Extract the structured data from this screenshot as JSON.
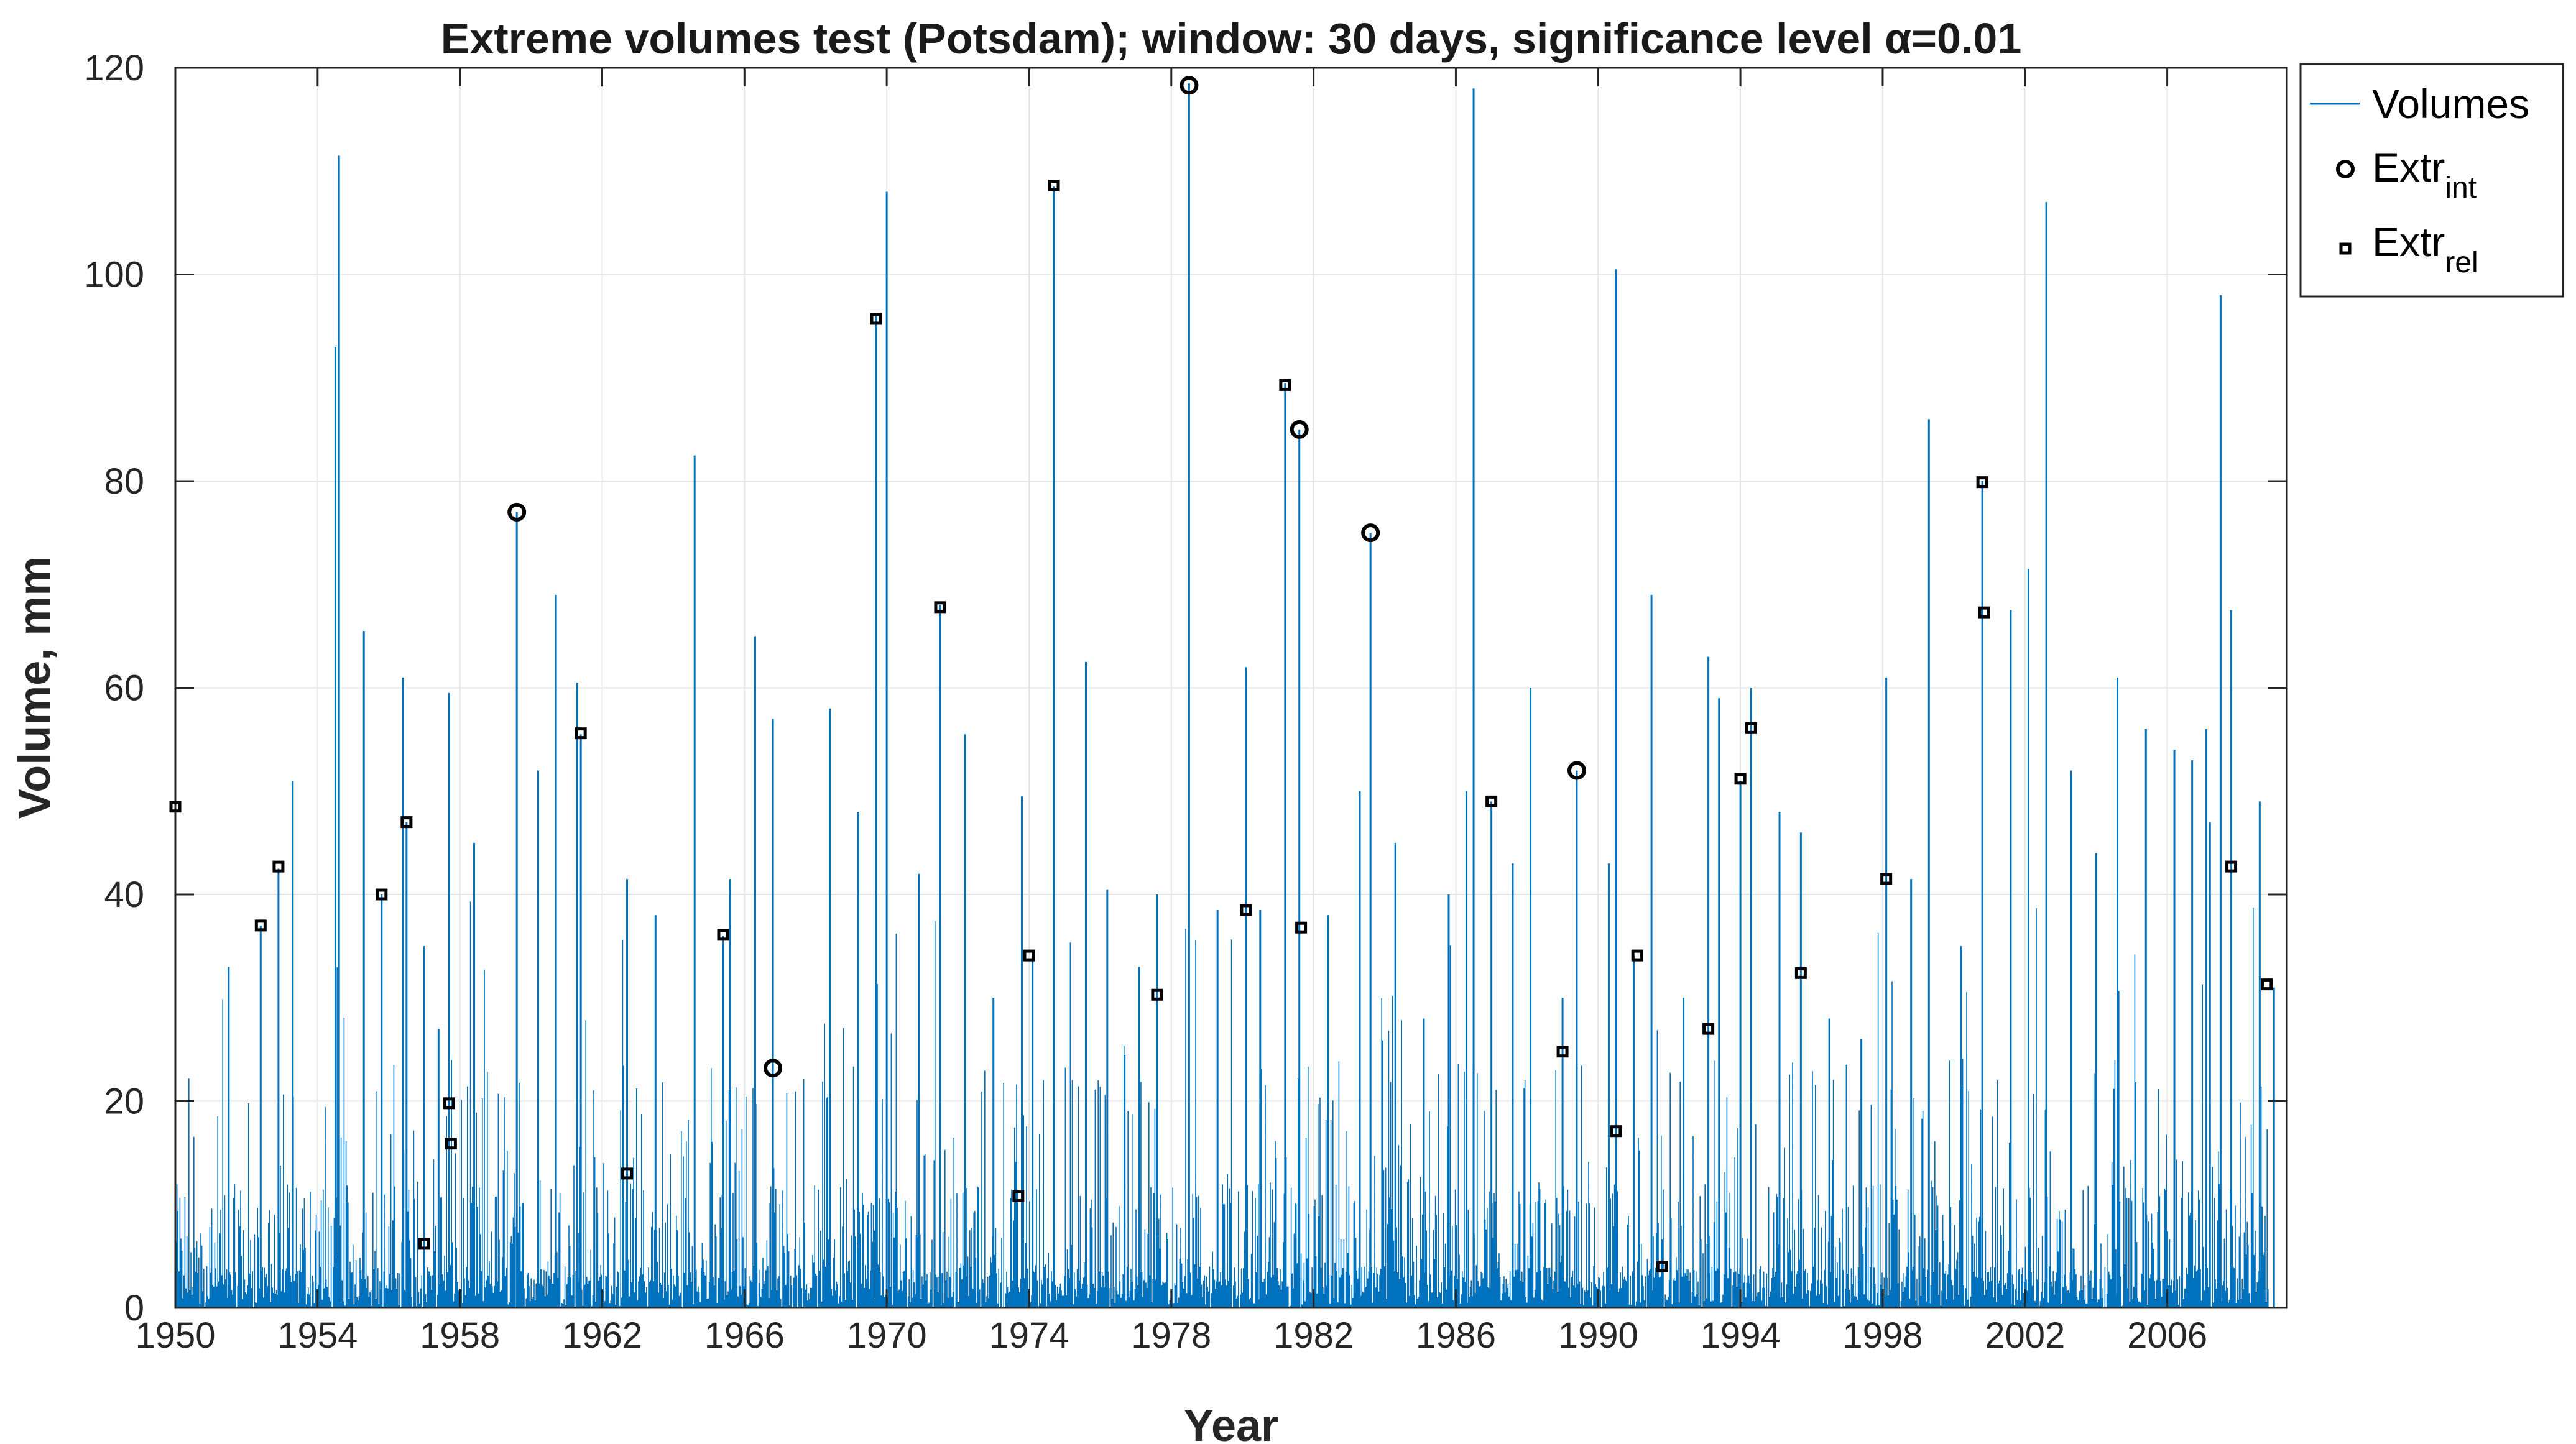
{
  "chart_data": {
    "type": "bar",
    "title": "Extreme volumes test (Potsdam); window: 30 days, significance level α=0.01",
    "xlabel": "Year",
    "ylabel": "Volume, mm",
    "xlim": [
      1950,
      2009.5
    ],
    "ylim": [
      0,
      120
    ],
    "grid": true,
    "xticks": [
      1950,
      1954,
      1958,
      1962,
      1966,
      1970,
      1974,
      1978,
      1982,
      1986,
      1990,
      1994,
      1998,
      2002,
      2006
    ],
    "yticks": [
      0,
      20,
      40,
      60,
      80,
      100,
      120
    ],
    "legend": {
      "position": "outside-top-right",
      "entries": [
        {
          "label": "Volumes",
          "marker": "line"
        },
        {
          "label": "Extr",
          "sub": "int",
          "marker": "circle"
        },
        {
          "label": "Extr",
          "sub": "rel",
          "marker": "square"
        }
      ]
    },
    "colors": {
      "volumes": "#0072BD",
      "markers": "#000000",
      "grid": "#e6e6e6",
      "axes": "#262626"
    },
    "series": [
      {
        "name": "Volumes",
        "type": "stem",
        "x": [
          1950.0,
          1951.5,
          1952.4,
          1952.9,
          1953.3,
          1954.5,
          1954.6,
          1955.3,
          1955.8,
          1956.4,
          1956.5,
          1957.0,
          1957.4,
          1957.7,
          1958.4,
          1959.6,
          1960.2,
          1960.7,
          1961.3,
          1961.4,
          1962.7,
          1963.5,
          1964.6,
          1965.4,
          1965.6,
          1966.3,
          1966.8,
          1968.4,
          1969.2,
          1969.7,
          1970.0,
          1970.9,
          1971.5,
          1972.2,
          1973.0,
          1973.8,
          1974.1,
          1974.7,
          1975.6,
          1976.2,
          1977.1,
          1977.6,
          1978.5,
          1979.3,
          1980.1,
          1980.5,
          1981.2,
          1981.6,
          1982.4,
          1983.3,
          1983.6,
          1984.3,
          1985.1,
          1985.8,
          1986.3,
          1986.5,
          1987.0,
          1987.6,
          1988.1,
          1989.0,
          1989.4,
          1990.3,
          1990.5,
          1991.0,
          1991.5,
          1992.4,
          1993.1,
          1993.4,
          1994.0,
          1994.3,
          1995.1,
          1995.7,
          1996.5,
          1997.4,
          1998.1,
          1998.8,
          1999.3,
          2000.2,
          2000.8,
          2001.6,
          2002.1,
          2002.6,
          2003.3,
          2004.0,
          2004.6,
          2005.4,
          2006.2,
          2006.7,
          2007.1,
          2007.2,
          2007.5,
          2007.8,
          2008.6,
          2009.0
        ],
        "values": [
          48.5,
          33,
          37,
          42.5,
          51,
          93,
          111.5,
          65.5,
          40,
          61,
          47,
          35,
          27,
          59.5,
          45,
          77,
          52,
          69,
          60.5,
          55.5,
          41.5,
          38,
          82.5,
          36,
          41.5,
          65,
          57,
          58,
          48,
          96,
          108,
          42,
          68,
          55.5,
          30,
          49.5,
          34,
          108.5,
          62.5,
          40.5,
          33,
          40,
          118.5,
          38.5,
          62,
          38.5,
          89.5,
          85,
          38,
          50,
          75,
          45,
          28,
          40,
          50,
          118,
          49,
          43,
          60,
          30,
          52,
          43,
          100.5,
          34,
          69,
          30,
          63,
          59,
          51,
          60,
          48,
          46,
          28,
          26,
          61,
          41.5,
          86,
          35,
          80,
          67.5,
          71.5,
          107,
          52,
          44,
          61,
          56,
          54,
          53,
          56,
          47,
          98,
          67.5,
          49,
          31
        ]
      },
      {
        "name": "Extr_int",
        "type": "scatter",
        "marker": "circle",
        "x": [
          1959.6,
          1966.8,
          1978.5,
          1981.6,
          1983.6,
          1989.4
        ],
        "values": [
          77,
          23.2,
          118.3,
          85,
          75,
          52
        ]
      },
      {
        "name": "Extr_rel",
        "type": "scatter",
        "marker": "square",
        "x": [
          1950.0,
          1952.4,
          1952.9,
          1955.8,
          1956.5,
          1957.0,
          1957.7,
          1957.75,
          1961.4,
          1962.7,
          1965.4,
          1969.7,
          1971.5,
          1973.7,
          1974.0,
          1974.7,
          1977.6,
          1980.1,
          1981.2,
          1981.65,
          1987.0,
          1989.0,
          1990.5,
          1991.1,
          1991.8,
          1993.1,
          1994.0,
          1994.3,
          1995.7,
          1998.1,
          2000.8,
          2000.85,
          2007.8,
          2008.8
        ],
        "values": [
          48.5,
          37,
          42.7,
          40,
          47,
          6.2,
          19.8,
          15.9,
          55.6,
          13,
          36.1,
          95.7,
          67.8,
          10.8,
          34.1,
          108.6,
          30.3,
          38.5,
          89.3,
          36.8,
          49,
          24.8,
          17.1,
          34.1,
          4,
          27,
          51.2,
          56.1,
          32.4,
          41.5,
          79.9,
          67.3,
          42.7,
          31.3
        ]
      }
    ]
  }
}
